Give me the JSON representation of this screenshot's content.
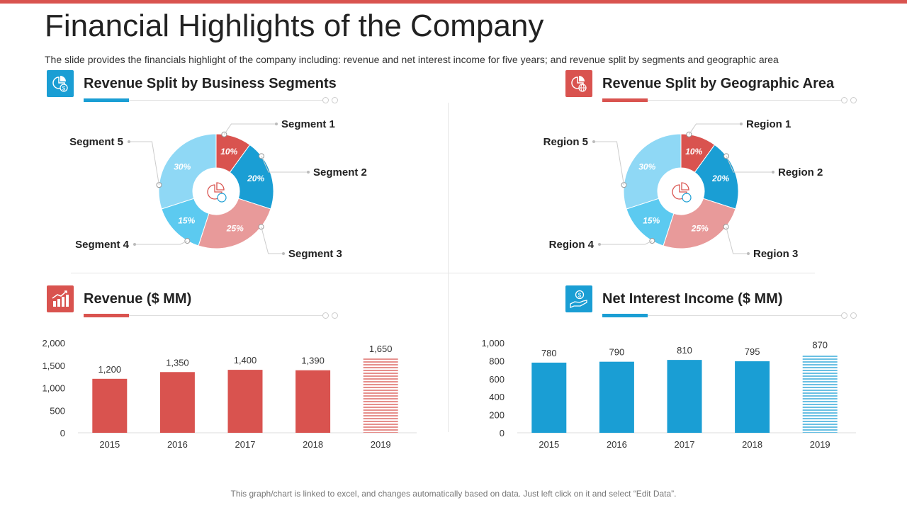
{
  "header": {
    "title": "Financial Highlights of the Company",
    "subtitle": "The slide provides the financials highlight of the company including: revenue and net interest income for five years; and revenue split by segments and geographic area"
  },
  "footer": {
    "note": "This graph/chart is linked to excel, and changes automatically based on data. Just left click on it and select “Edit Data”."
  },
  "colors": {
    "red": "#d9534f",
    "blue": "#1a9ed4",
    "light_blue": "#8fd8f5",
    "sky": "#5ccaf0",
    "pink": "#e89a9a"
  },
  "sections": {
    "segments": {
      "title": "Revenue Split by Business Segments",
      "icon": "pie-chart-dollar-icon"
    },
    "geography": {
      "title": "Revenue Split by Geographic Area",
      "icon": "pie-chart-globe-icon"
    },
    "revenue": {
      "title": "Revenue ($ MM)",
      "icon": "growth-chart-icon"
    },
    "nii": {
      "title": "Net Interest Income ($ MM)",
      "icon": "hand-coin-icon"
    }
  },
  "chart_data": [
    {
      "type": "pie",
      "title": "Revenue Split by Business Segments",
      "labels": [
        "Segment 1",
        "Segment 2",
        "Segment 3",
        "Segment 4",
        "Segment 5"
      ],
      "values": [
        10,
        20,
        25,
        15,
        30
      ],
      "value_labels": [
        "10%",
        "20%",
        "25%",
        "15%",
        "30%"
      ]
    },
    {
      "type": "pie",
      "title": "Revenue Split by Geographic Area",
      "labels": [
        "Region 1",
        "Region 2",
        "Region 3",
        "Region 4",
        "Region 5"
      ],
      "values": [
        10,
        20,
        25,
        15,
        30
      ],
      "value_labels": [
        "10%",
        "20%",
        "25%",
        "15%",
        "30%"
      ]
    },
    {
      "type": "bar",
      "title": "Revenue ($ MM)",
      "categories": [
        "2015",
        "2016",
        "2017",
        "2018",
        "2019"
      ],
      "values": [
        1200,
        1350,
        1400,
        1390,
        1650
      ],
      "value_labels": [
        "1,200",
        "1,350",
        "1,400",
        "1,390",
        "1,650"
      ],
      "ylim": [
        0,
        2000
      ],
      "yticks": [
        0,
        500,
        1000,
        1500,
        2000
      ],
      "ytick_labels": [
        "0",
        "500",
        "1,000",
        "1,500",
        "2,000"
      ],
      "projected_last": true
    },
    {
      "type": "bar",
      "title": "Net Interest Income ($ MM)",
      "categories": [
        "2015",
        "2016",
        "2017",
        "2018",
        "2019"
      ],
      "values": [
        780,
        790,
        810,
        795,
        870
      ],
      "value_labels": [
        "780",
        "790",
        "810",
        "795",
        "870"
      ],
      "ylim": [
        0,
        1000
      ],
      "yticks": [
        0,
        200,
        400,
        600,
        800,
        1000
      ],
      "ytick_labels": [
        "0",
        "200",
        "400",
        "600",
        "800",
        "1,000"
      ],
      "projected_last": true
    }
  ]
}
